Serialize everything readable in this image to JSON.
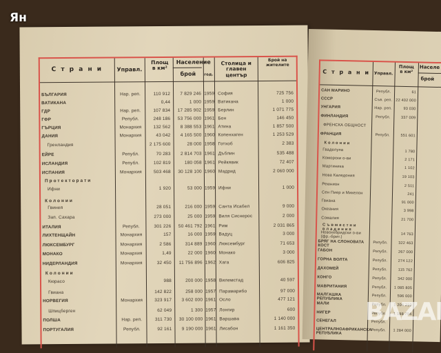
{
  "watermark": "Ян",
  "logo": "BAZAR",
  "left_table": {
    "headers": {
      "country": "С т р а н и",
      "government": "Управл.",
      "area": "Площ в км²",
      "population": "Население",
      "pop_count": "брой",
      "pop_year": "год.",
      "capital": "Столица и главен център",
      "inhabitants": "Брой на жителите"
    },
    "rows": [
      {
        "name": "БЪЛГАРИЯ",
        "type": "country",
        "gov": "Нар. реп.",
        "area": "110 912",
        "pop": "7 829 246",
        "year": "1959",
        "capital": "София",
        "inh": "725 756"
      },
      {
        "name": "ВАТИКАНА",
        "type": "country",
        "gov": "",
        "area": "0,44",
        "pop": "1 000",
        "year": "1959",
        "capital": "Ватикана",
        "inh": "1 000"
      },
      {
        "name": "ГДР",
        "type": "country",
        "gov": "Нар. реп.",
        "area": "107 834",
        "pop": "17 285 902",
        "year": "1959",
        "capital": "Берлин",
        "inh": "1 071 775"
      },
      {
        "name": "ГФР",
        "type": "country",
        "gov": "Републ.",
        "area": "248 186",
        "pop": "53 756 000",
        "year": "1961",
        "capital": "Бон",
        "inh": "146 450"
      },
      {
        "name": "ГЪРЦИЯ",
        "type": "country",
        "gov": "Монархия",
        "area": "132 562",
        "pop": "8 388 553",
        "year": "1961",
        "capital": "Атина",
        "inh": "1 857 500"
      },
      {
        "name": "ДАНИЯ",
        "type": "country",
        "gov": "Монархия",
        "area": "43 042",
        "pop": "4 165 500",
        "year": "1960",
        "capital": "Копенхаген",
        "inh": "1 253 529"
      },
      {
        "name": "Гренландия",
        "type": "sub",
        "gov": "",
        "area": "2 175 600",
        "pop": "28 000",
        "year": "1958",
        "capital": "Готхоб",
        "inh": "2 383"
      },
      {
        "name": "ЕЙРЕ",
        "type": "country",
        "gov": "Републ.",
        "area": "70 283",
        "pop": "2 814 703",
        "year": "1961",
        "capital": "Дъблин",
        "inh": "535 488"
      },
      {
        "name": "ИСЛАНДИЯ",
        "type": "country",
        "gov": "Републ.",
        "area": "102 819",
        "pop": "180 058",
        "year": "1961",
        "capital": "Рейкявик",
        "inh": "72 407"
      },
      {
        "name": "ИСПАНИЯ",
        "type": "country",
        "gov": "Монархия",
        "area": "503 468",
        "pop": "30 128 100",
        "year": "1960",
        "capital": "Мадрид",
        "inh": "2 060 000"
      },
      {
        "name": "Протекторати",
        "type": "group",
        "gov": "",
        "area": "",
        "pop": "",
        "year": "",
        "capital": "",
        "inh": ""
      },
      {
        "name": "Ифни",
        "type": "sub",
        "gov": "",
        "area": "1 920",
        "pop": "53 000",
        "year": "1959",
        "capital": "Ифни",
        "inh": "1 000"
      },
      {
        "name": "Колонии",
        "type": "group",
        "gov": "",
        "area": "",
        "pop": "",
        "year": "",
        "capital": "",
        "inh": ""
      },
      {
        "name": "Гвинея",
        "type": "sub",
        "gov": "",
        "area": "28 051",
        "pop": "216 000",
        "year": "1959",
        "capital": "Санта Исабел",
        "inh": "9 000"
      },
      {
        "name": "Зап. Сахара",
        "type": "sub",
        "gov": "",
        "area": "273 000",
        "pop": "25 000",
        "year": "1959",
        "capital": "Виля Сиснерос",
        "inh": "2 000"
      },
      {
        "name": "ИТАЛИЯ",
        "type": "country",
        "gov": "Републ.",
        "area": "301 226",
        "pop": "50 461 792",
        "year": "1961",
        "capital": "Рим",
        "inh": "2 031 865"
      },
      {
        "name": "ЛИХТЕНЩАЙН",
        "type": "country",
        "gov": "Монархия",
        "area": "157",
        "pop": "16 000",
        "year": "1959",
        "capital": "Вадуц",
        "inh": "3 000"
      },
      {
        "name": "ЛЮКСЕМБУРГ",
        "type": "country",
        "gov": "Монархия",
        "area": "2 586",
        "pop": "314 889",
        "year": "1960",
        "capital": "Люксембург",
        "inh": "71 653"
      },
      {
        "name": "МОНАКО",
        "type": "country",
        "gov": "Монархия",
        "area": "1,49",
        "pop": "22 000",
        "year": "1960",
        "capital": "Монако",
        "inh": "3 000"
      },
      {
        "name": "НИДЕРЛАНДИЯ",
        "type": "country",
        "gov": "Монархия",
        "area": "32 450",
        "pop": "11 756 896",
        "year": "1962",
        "capital": "Хага",
        "inh": "606 825"
      },
      {
        "name": "Колонии",
        "type": "group",
        "gov": "",
        "area": "",
        "pop": "",
        "year": "",
        "capital": "",
        "inh": ""
      },
      {
        "name": "Кюрасо",
        "type": "sub",
        "gov": "",
        "area": "988",
        "pop": "200 000",
        "year": "1958",
        "capital": "Вилемстад",
        "inh": "40 597"
      },
      {
        "name": "Гвиана",
        "type": "sub",
        "gov": "",
        "area": "142 822",
        "pop": "258 000",
        "year": "1957",
        "capital": "Парамарибо",
        "inh": "97 000"
      },
      {
        "name": "НОРВЕГИЯ",
        "type": "country",
        "gov": "Монархия",
        "area": "323 917",
        "pop": "3 602 000",
        "year": "1961",
        "capital": "Осло",
        "inh": "477 121"
      },
      {
        "name": "Шпицберген",
        "type": "sub",
        "gov": "",
        "area": "62 049",
        "pop": "1 300",
        "year": "1957",
        "capital": "Лонгир",
        "inh": "600"
      },
      {
        "name": "ПОЛША",
        "type": "country",
        "gov": "Нар. реп.",
        "area": "311 730",
        "pop": "30 100 000",
        "year": "1961",
        "capital": "Варшава",
        "inh": "1 140 000"
      },
      {
        "name": "ПОРТУГАЛИЯ",
        "type": "country",
        "gov": "Републ.",
        "area": "92 161",
        "pop": "9 190 000",
        "year": "1961",
        "capital": "Лисабон",
        "inh": "1 161 350"
      }
    ]
  },
  "right_table": {
    "headers": {
      "country": "С т р а н и",
      "government": "Управл.",
      "area": "Площ в км²",
      "population": "Населе",
      "pop_count": "брой"
    },
    "rows": [
      {
        "name": "САН МАРИНО",
        "type": "country",
        "gov": "Републ.",
        "area": "61"
      },
      {
        "name": "СССР",
        "type": "country",
        "gov": "Съв. реп.",
        "area": "22 402 000"
      },
      {
        "name": "УНГАРИЯ",
        "type": "country",
        "gov": "Нар. реп.",
        "area": "93 030"
      },
      {
        "name": "ФИНЛАНДИЯ",
        "type": "country",
        "gov": "Републ.",
        "area": "337 009"
      },
      {
        "name": "ФРЕНСКА ОБЩНОСТ",
        "type": "sub",
        "gov": "",
        "area": ""
      },
      {
        "name": "ФРАНЦИЯ",
        "type": "country",
        "gov": "Републ.",
        "area": "551 601"
      },
      {
        "name": "Колонии",
        "type": "group",
        "gov": "",
        "area": ""
      },
      {
        "name": "Гваделупа",
        "type": "sub",
        "gov": "",
        "area": "1 780"
      },
      {
        "name": "Коморски о-ви",
        "type": "sub",
        "gov": "",
        "area": "2 171"
      },
      {
        "name": "Мартиника",
        "type": "sub",
        "gov": "",
        "area": "1 102"
      },
      {
        "name": "Нова Каледония",
        "type": "sub",
        "gov": "",
        "area": "19 103"
      },
      {
        "name": "Реюнион",
        "type": "sub",
        "gov": "",
        "area": "2 511"
      },
      {
        "name": "Сен Пиер и Микелон",
        "type": "sub",
        "gov": "",
        "area": "241"
      },
      {
        "name": "Гвиана",
        "type": "sub",
        "gov": "",
        "area": "91 000"
      },
      {
        "name": "Океания",
        "type": "sub",
        "gov": "",
        "area": "3 998"
      },
      {
        "name": "Сомалия",
        "type": "sub",
        "gov": "",
        "area": "21 700"
      },
      {
        "name": "Съвместни владения",
        "type": "group",
        "gov": "",
        "area": ""
      },
      {
        "name": "Новохебридски о-ви (фр.-брит.)",
        "type": "sub",
        "gov": "",
        "area": "14 763"
      },
      {
        "name": "БРЯГ НА СЛОНОВАТА КОСТ",
        "type": "country",
        "gov": "Републ.",
        "area": "322 463"
      },
      {
        "name": "ГАБОН",
        "type": "country",
        "gov": "Републ.",
        "area": "267 000"
      },
      {
        "name": "ГОРНА ВОЛТА",
        "type": "country",
        "gov": "Републ.",
        "area": "274 122"
      },
      {
        "name": "ДАХОМЕЙ",
        "type": "country",
        "gov": "Републ.",
        "area": "115 762"
      },
      {
        "name": "КОНГО",
        "type": "country",
        "gov": "Републ.",
        "area": "342 000"
      },
      {
        "name": "МАВРИТАНИЯ",
        "type": "country",
        "gov": "Републ.",
        "area": "1 085 805"
      },
      {
        "name": "МАЛГАШКА РЕПУБЛИКА",
        "type": "country",
        "gov": "Републ.",
        "area": "596 000"
      },
      {
        "name": "МАЛИ",
        "type": "country",
        "gov": "Републ.",
        "area": "1 204 210"
      },
      {
        "name": "НИГЕР",
        "type": "country",
        "gov": "Републ.",
        "area": "1 188 794"
      },
      {
        "name": "СЕНЕГАЛ",
        "type": "country",
        "gov": "Републ.",
        "area": ""
      },
      {
        "name": "ЦЕНТРАЛНОАФРИКАНСКА РЕПУБЛИКА",
        "type": "country",
        "gov": "Републ.",
        "area": "1 284 000"
      }
    ]
  }
}
